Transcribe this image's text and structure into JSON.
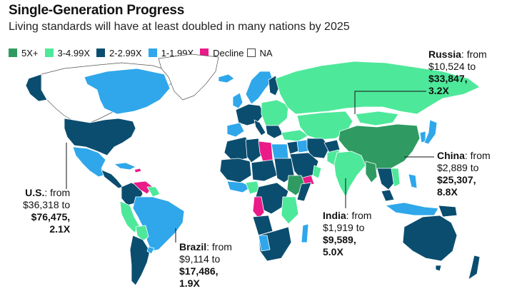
{
  "title": "Single-Generation Progress",
  "subtitle": "Living standards will have at least doubled in many nations by 2025",
  "legend": [
    {
      "label": "5X+",
      "color": "#2f9b62"
    },
    {
      "label": "3-4.99X",
      "color": "#4ee89a"
    },
    {
      "label": "2-2.99X",
      "color": "#0b4d6f"
    },
    {
      "label": "1-1.99X",
      "color": "#2fa7ea"
    },
    {
      "label": "Decline",
      "color": "#ea1a88"
    },
    {
      "label": "NA",
      "color": "#ffffff"
    }
  ],
  "colors": {
    "five_plus": "#2f9b62",
    "three_to_five": "#4ee89a",
    "two_to_three": "#0b4d6f",
    "one_to_two": "#2fa7ea",
    "decline": "#ea1a88",
    "na": "#ffffff",
    "border": "#ffffff"
  },
  "callouts": {
    "russia": {
      "name": "Russia",
      "from": ": from",
      "from_value": "$10,524 to",
      "to_value": "$33,847,",
      "multiple": "3.2X"
    },
    "china": {
      "name": "China",
      "from": ": from",
      "from_value": "$2,889 to",
      "to_value": "$25,307,",
      "multiple": "8.8X"
    },
    "us": {
      "name": "U.S.",
      "from": ": from",
      "from_value": "$36,318 to",
      "to_value": "$76,475,",
      "multiple": "2.1X"
    },
    "india": {
      "name": "India",
      "from": ": from",
      "from_value": "$1,919 to",
      "to_value": "$9,589,",
      "multiple": "5.0X"
    },
    "brazil": {
      "name": "Brazil",
      "from": ": from",
      "from_value": "$9,114 to",
      "to_value": "$17,486,",
      "multiple": "1.9X"
    }
  }
}
